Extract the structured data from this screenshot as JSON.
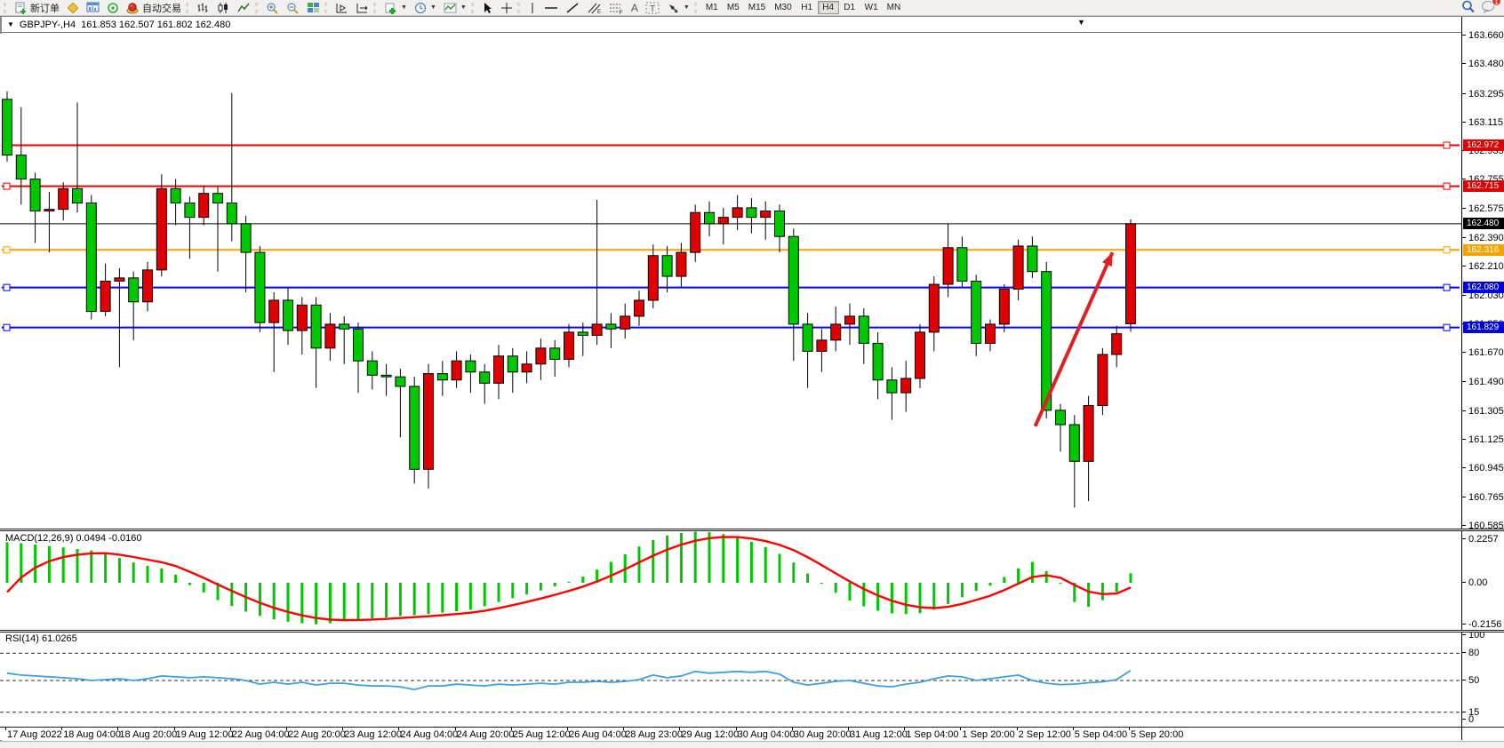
{
  "toolbar": {
    "new_order_label": "新订单",
    "auto_trading_label": "自动交易",
    "timeframes": [
      "M1",
      "M5",
      "M15",
      "M30",
      "H1",
      "H4",
      "D1",
      "W1",
      "MN"
    ],
    "active_timeframe": "H4",
    "notification_count": "1"
  },
  "chart": {
    "symbol_title": "GBPJPY-,H4",
    "ohlc_text": "161.853 162.507 161.802 162.480",
    "macd_label": "MACD(12,26,9) 0.0494 -0.0160",
    "rsi_label": "RSI(14) 61.0265",
    "collapse_glyph": "▼",
    "shift_glyph": "▼"
  },
  "chart_data": {
    "type": "candlestick",
    "symbol": "GBPJPY-",
    "timeframe": "H4",
    "current_ohlc": {
      "open": 161.853,
      "high": 162.507,
      "low": 161.802,
      "close": 162.48
    },
    "up_color": "#e00000",
    "down_color": "#00c800",
    "price_ticks": [
      163.66,
      163.48,
      163.295,
      163.115,
      162.935,
      162.755,
      162.575,
      162.39,
      162.21,
      162.03,
      161.85,
      161.67,
      161.49,
      161.305,
      161.125,
      160.945,
      160.765,
      160.585
    ],
    "time_labels": [
      "17 Aug 2022",
      "18 Aug 04:00",
      "18 Aug 20:00",
      "19 Aug 12:00",
      "22 Aug 04:00",
      "22 Aug 20:00",
      "23 Aug 12:00",
      "24 Aug 04:00",
      "24 Aug 20:00",
      "25 Aug 12:00",
      "26 Aug 04:00",
      "28 Aug 23:00",
      "29 Aug 12:00",
      "30 Aug 04:00",
      "30 Aug 20:00",
      "31 Aug 12:00",
      "1 Sep 04:00",
      "1 Sep 20:00",
      "2 Sep 12:00",
      "5 Sep 04:00",
      "5 Sep 20:00"
    ],
    "hlines": [
      {
        "price": 162.972,
        "color": "#ee0000"
      },
      {
        "price": 162.715,
        "color": "#ee0000"
      },
      {
        "price": 162.316,
        "color": "#f5a300"
      },
      {
        "price": 162.08,
        "color": "#0000ee"
      },
      {
        "price": 161.829,
        "color": "#0000ee"
      }
    ],
    "bid_line": {
      "price": 162.48,
      "color": "#000000"
    },
    "price_badges": [
      {
        "price": 162.972,
        "color": "#dd0000"
      },
      {
        "price": 162.715,
        "color": "#dd0000"
      },
      {
        "price": 162.48,
        "color": "#000000"
      },
      {
        "price": 162.316,
        "color": "#f5a300"
      },
      {
        "price": 162.08,
        "color": "#0000dd"
      },
      {
        "price": 161.829,
        "color": "#0000dd"
      }
    ],
    "candles": [
      [
        163.26,
        163.31,
        162.87,
        162.91
      ],
      [
        162.91,
        163.21,
        162.6,
        162.76
      ],
      [
        162.76,
        162.8,
        162.36,
        162.56
      ],
      [
        162.56,
        162.68,
        162.3,
        162.57
      ],
      [
        162.57,
        162.74,
        162.5,
        162.7
      ],
      [
        162.7,
        163.24,
        162.55,
        162.61
      ],
      [
        162.61,
        162.66,
        161.88,
        161.93
      ],
      [
        161.93,
        162.23,
        161.9,
        162.12
      ],
      [
        162.12,
        162.2,
        161.58,
        162.14
      ],
      [
        162.14,
        162.18,
        161.75,
        161.99
      ],
      [
        161.99,
        162.24,
        161.93,
        162.19
      ],
      [
        162.19,
        162.79,
        162.15,
        162.7
      ],
      [
        162.7,
        162.76,
        162.47,
        162.61
      ],
      [
        162.61,
        162.65,
        162.26,
        162.52
      ],
      [
        162.52,
        162.72,
        162.47,
        162.67
      ],
      [
        162.67,
        162.71,
        162.18,
        162.61
      ],
      [
        162.61,
        163.3,
        162.37,
        162.48
      ],
      [
        162.48,
        162.53,
        162.05,
        162.3
      ],
      [
        162.3,
        162.34,
        161.8,
        161.86
      ],
      [
        161.86,
        162.05,
        161.55,
        162.0
      ],
      [
        162.0,
        162.08,
        161.72,
        161.81
      ],
      [
        161.81,
        162.02,
        161.66,
        161.97
      ],
      [
        161.97,
        162.02,
        161.45,
        161.7
      ],
      [
        161.7,
        161.92,
        161.62,
        161.85
      ],
      [
        161.85,
        161.9,
        161.6,
        161.82
      ],
      [
        161.82,
        161.86,
        161.42,
        161.62
      ],
      [
        161.62,
        161.68,
        161.44,
        161.53
      ],
      [
        161.53,
        161.6,
        161.4,
        161.52
      ],
      [
        161.52,
        161.57,
        161.14,
        161.46
      ],
      [
        161.46,
        161.52,
        160.85,
        160.94
      ],
      [
        160.94,
        161.6,
        160.82,
        161.54
      ],
      [
        161.54,
        161.62,
        161.4,
        161.5
      ],
      [
        161.5,
        161.68,
        161.45,
        161.62
      ],
      [
        161.62,
        161.66,
        161.42,
        161.55
      ],
      [
        161.55,
        161.6,
        161.35,
        161.48
      ],
      [
        161.48,
        161.72,
        161.38,
        161.65
      ],
      [
        161.65,
        161.7,
        161.42,
        161.55
      ],
      [
        161.55,
        161.68,
        161.48,
        161.6
      ],
      [
        161.6,
        161.76,
        161.5,
        161.7
      ],
      [
        161.7,
        161.75,
        161.52,
        161.63
      ],
      [
        161.63,
        161.85,
        161.58,
        161.8
      ],
      [
        161.8,
        161.86,
        161.65,
        161.78
      ],
      [
        161.78,
        162.63,
        161.72,
        161.85
      ],
      [
        161.85,
        161.92,
        161.7,
        161.82
      ],
      [
        161.82,
        161.98,
        161.76,
        161.9
      ],
      [
        161.9,
        162.06,
        161.84,
        162.0
      ],
      [
        162.0,
        162.35,
        161.95,
        162.28
      ],
      [
        162.28,
        162.34,
        162.05,
        162.15
      ],
      [
        162.15,
        162.36,
        162.08,
        162.3
      ],
      [
        162.3,
        162.6,
        162.24,
        162.55
      ],
      [
        162.55,
        162.62,
        162.4,
        162.48
      ],
      [
        162.48,
        162.58,
        162.35,
        162.52
      ],
      [
        162.52,
        162.66,
        162.44,
        162.58
      ],
      [
        162.58,
        162.64,
        162.42,
        162.52
      ],
      [
        162.52,
        162.62,
        162.38,
        162.56
      ],
      [
        162.56,
        162.6,
        162.3,
        162.4
      ],
      [
        162.4,
        162.45,
        161.62,
        161.85
      ],
      [
        161.85,
        161.92,
        161.45,
        161.68
      ],
      [
        161.68,
        161.82,
        161.55,
        161.75
      ],
      [
        161.75,
        161.96,
        161.68,
        161.85
      ],
      [
        161.85,
        161.98,
        161.72,
        161.9
      ],
      [
        161.9,
        161.95,
        161.6,
        161.73
      ],
      [
        161.73,
        161.8,
        161.38,
        161.5
      ],
      [
        161.5,
        161.58,
        161.25,
        161.42
      ],
      [
        161.42,
        161.62,
        161.3,
        161.51
      ],
      [
        161.51,
        161.85,
        161.45,
        161.8
      ],
      [
        161.8,
        162.15,
        161.68,
        162.1
      ],
      [
        162.1,
        162.48,
        162.02,
        162.33
      ],
      [
        162.33,
        162.4,
        162.08,
        162.12
      ],
      [
        162.12,
        162.16,
        161.65,
        161.73
      ],
      [
        161.73,
        161.88,
        161.68,
        161.85
      ],
      [
        161.85,
        162.1,
        161.8,
        162.07
      ],
      [
        162.07,
        162.38,
        162.0,
        162.34
      ],
      [
        162.34,
        162.4,
        162.14,
        162.18
      ],
      [
        162.18,
        162.24,
        161.26,
        161.31
      ],
      [
        161.31,
        161.35,
        161.05,
        161.22
      ],
      [
        161.22,
        161.28,
        160.7,
        160.99
      ],
      [
        160.99,
        161.4,
        160.74,
        161.34
      ],
      [
        161.34,
        161.7,
        161.28,
        161.66
      ],
      [
        161.66,
        161.84,
        161.58,
        161.79
      ],
      [
        161.853,
        162.507,
        161.802,
        162.48
      ]
    ],
    "macd": {
      "params": "12,26,9",
      "value": 0.0494,
      "signal_value": -0.016,
      "scale_ticks": [
        0.2257,
        0.0,
        -0.2156
      ],
      "bar_color": "#00c800",
      "line_color": "#ff0000",
      "signal_seed": -0.16,
      "signal_alpha": 0.3,
      "values": [
        0.21,
        0.205,
        0.198,
        0.19,
        0.183,
        0.175,
        0.168,
        0.155,
        0.128,
        0.105,
        0.088,
        0.075,
        0.042,
        -0.012,
        -0.05,
        -0.09,
        -0.12,
        -0.15,
        -0.172,
        -0.19,
        -0.202,
        -0.21,
        -0.215,
        -0.21,
        -0.2,
        -0.192,
        -0.185,
        -0.18,
        -0.172,
        -0.168,
        -0.162,
        -0.155,
        -0.148,
        -0.14,
        -0.122,
        -0.1,
        -0.08,
        -0.06,
        -0.04,
        -0.018,
        0.005,
        0.032,
        0.068,
        0.108,
        0.148,
        0.188,
        0.222,
        0.245,
        0.258,
        0.265,
        0.262,
        0.252,
        0.235,
        0.212,
        0.185,
        0.15,
        0.105,
        0.048,
        -0.005,
        -0.052,
        -0.092,
        -0.122,
        -0.145,
        -0.158,
        -0.162,
        -0.158,
        -0.14,
        -0.11,
        -0.075,
        -0.042,
        -0.015,
        0.03,
        0.075,
        0.108,
        0.06,
        -0.005,
        -0.1,
        -0.125,
        -0.09,
        -0.048,
        0.0494
      ]
    },
    "rsi": {
      "period": 14,
      "value": 61.0265,
      "levels": [
        80,
        50,
        15
      ],
      "scale_ticks": [
        100,
        80,
        50,
        15,
        0
      ],
      "line_color": "#3f9fdc",
      "values": [
        58,
        56,
        55,
        54,
        53,
        52,
        50,
        51,
        52,
        50,
        52,
        55,
        54,
        53,
        54,
        53,
        52,
        50,
        46,
        48,
        46,
        48,
        45,
        47,
        47,
        45,
        44,
        44,
        43,
        40,
        44,
        44,
        46,
        45,
        44,
        46,
        45,
        46,
        47,
        46,
        48,
        48,
        49,
        48,
        49,
        51,
        56,
        53,
        55,
        60,
        58,
        59,
        60,
        59,
        60,
        57,
        48,
        45,
        47,
        49,
        50,
        47,
        44,
        43,
        46,
        48,
        52,
        55,
        54,
        50,
        52,
        54,
        56,
        50,
        47,
        45.5,
        46,
        47.5,
        48.5,
        51,
        61.03
      ]
    },
    "annotation_arrow": {
      "x1_index": 73.2,
      "y1_price": 161.21,
      "x2_index": 78.7,
      "y2_price": 162.3,
      "color": "#e02020"
    }
  }
}
